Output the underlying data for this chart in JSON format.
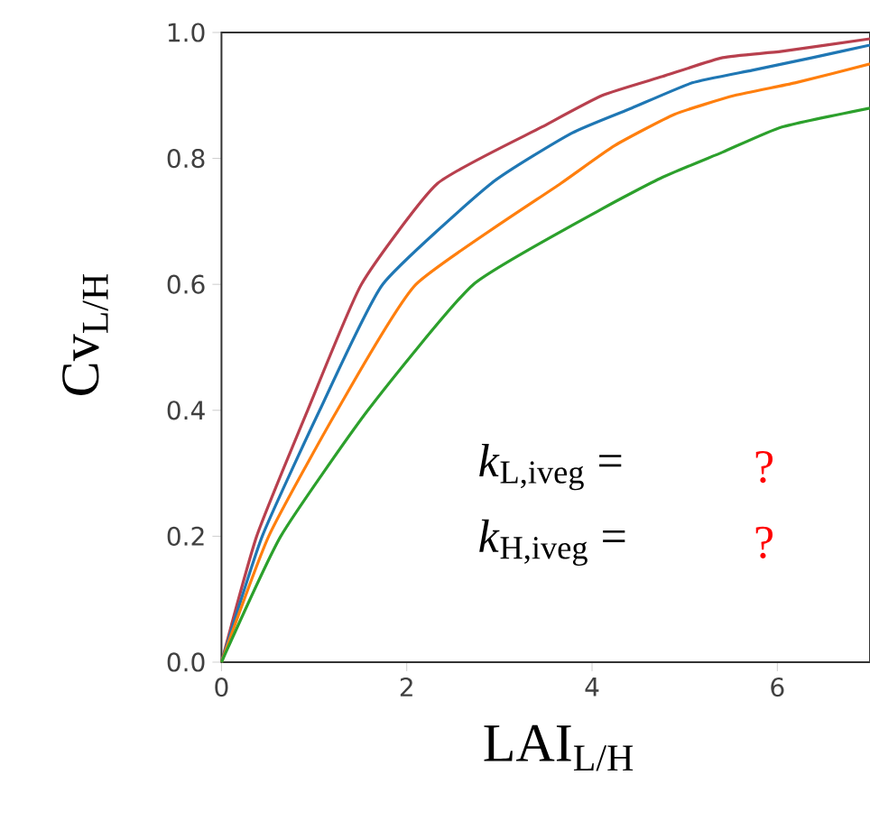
{
  "chart_data": {
    "type": "line",
    "xlabel": "LAI$_{L/H}$",
    "ylabel": "Cv$_{L/H}$",
    "xlim": [
      0,
      7
    ],
    "ylim": [
      0,
      1
    ],
    "xticks": [
      0,
      2,
      4,
      6
    ],
    "yticks": [
      {
        "value": 0,
        "label": "0.0"
      },
      {
        "value": 0.2,
        "label": "0.2"
      },
      {
        "value": 0.4,
        "label": "0.4"
      },
      {
        "value": 0.6,
        "label": "0.6"
      },
      {
        "value": 0.8,
        "label": "0.8"
      },
      {
        "value": 1,
        "label": "1.0"
      }
    ],
    "grid": false,
    "marker": "none",
    "line_style": "solid",
    "annotations": [
      "*k*$_{L,iveg}$ =",
      "?",
      "*k*$_{H,iveg}$ =",
      "?"
    ],
    "series": [
      {
        "color": "#b8404e",
        "x": [
          0,
          0.38,
          0.93,
          1.51,
          2.33,
          3.46,
          4.11,
          4.76,
          5.41,
          6.05,
          7
        ],
        "values": [
          0,
          0.2,
          0.4,
          0.6,
          0.76,
          0.85,
          0.9,
          0.93,
          0.96,
          0.97,
          0.99
        ]
      },
      {
        "color": "#1f77b4",
        "x": [
          0,
          0.44,
          1.06,
          1.74,
          2.91,
          3.78,
          4.43,
          5.08,
          5.73,
          6.38,
          7
        ],
        "values": [
          0,
          0.2,
          0.4,
          0.6,
          0.76,
          0.84,
          0.88,
          0.92,
          0.94,
          0.96,
          0.98
        ]
      },
      {
        "color": "#ff7f0e",
        "x": [
          0,
          0.51,
          1.25,
          2.1,
          3.66,
          4.24,
          4.89,
          5.54,
          6.19,
          7
        ],
        "values": [
          0,
          0.2,
          0.4,
          0.6,
          0.76,
          0.82,
          0.87,
          0.9,
          0.92,
          0.95
        ]
      },
      {
        "color": "#2ca02c",
        "x": [
          0,
          0.64,
          1.58,
          2.72,
          4.11,
          4.76,
          5.41,
          6.05,
          7
        ],
        "values": [
          0,
          0.2,
          0.4,
          0.6,
          0.72,
          0.77,
          0.81,
          0.85,
          0.88
        ]
      }
    ]
  }
}
